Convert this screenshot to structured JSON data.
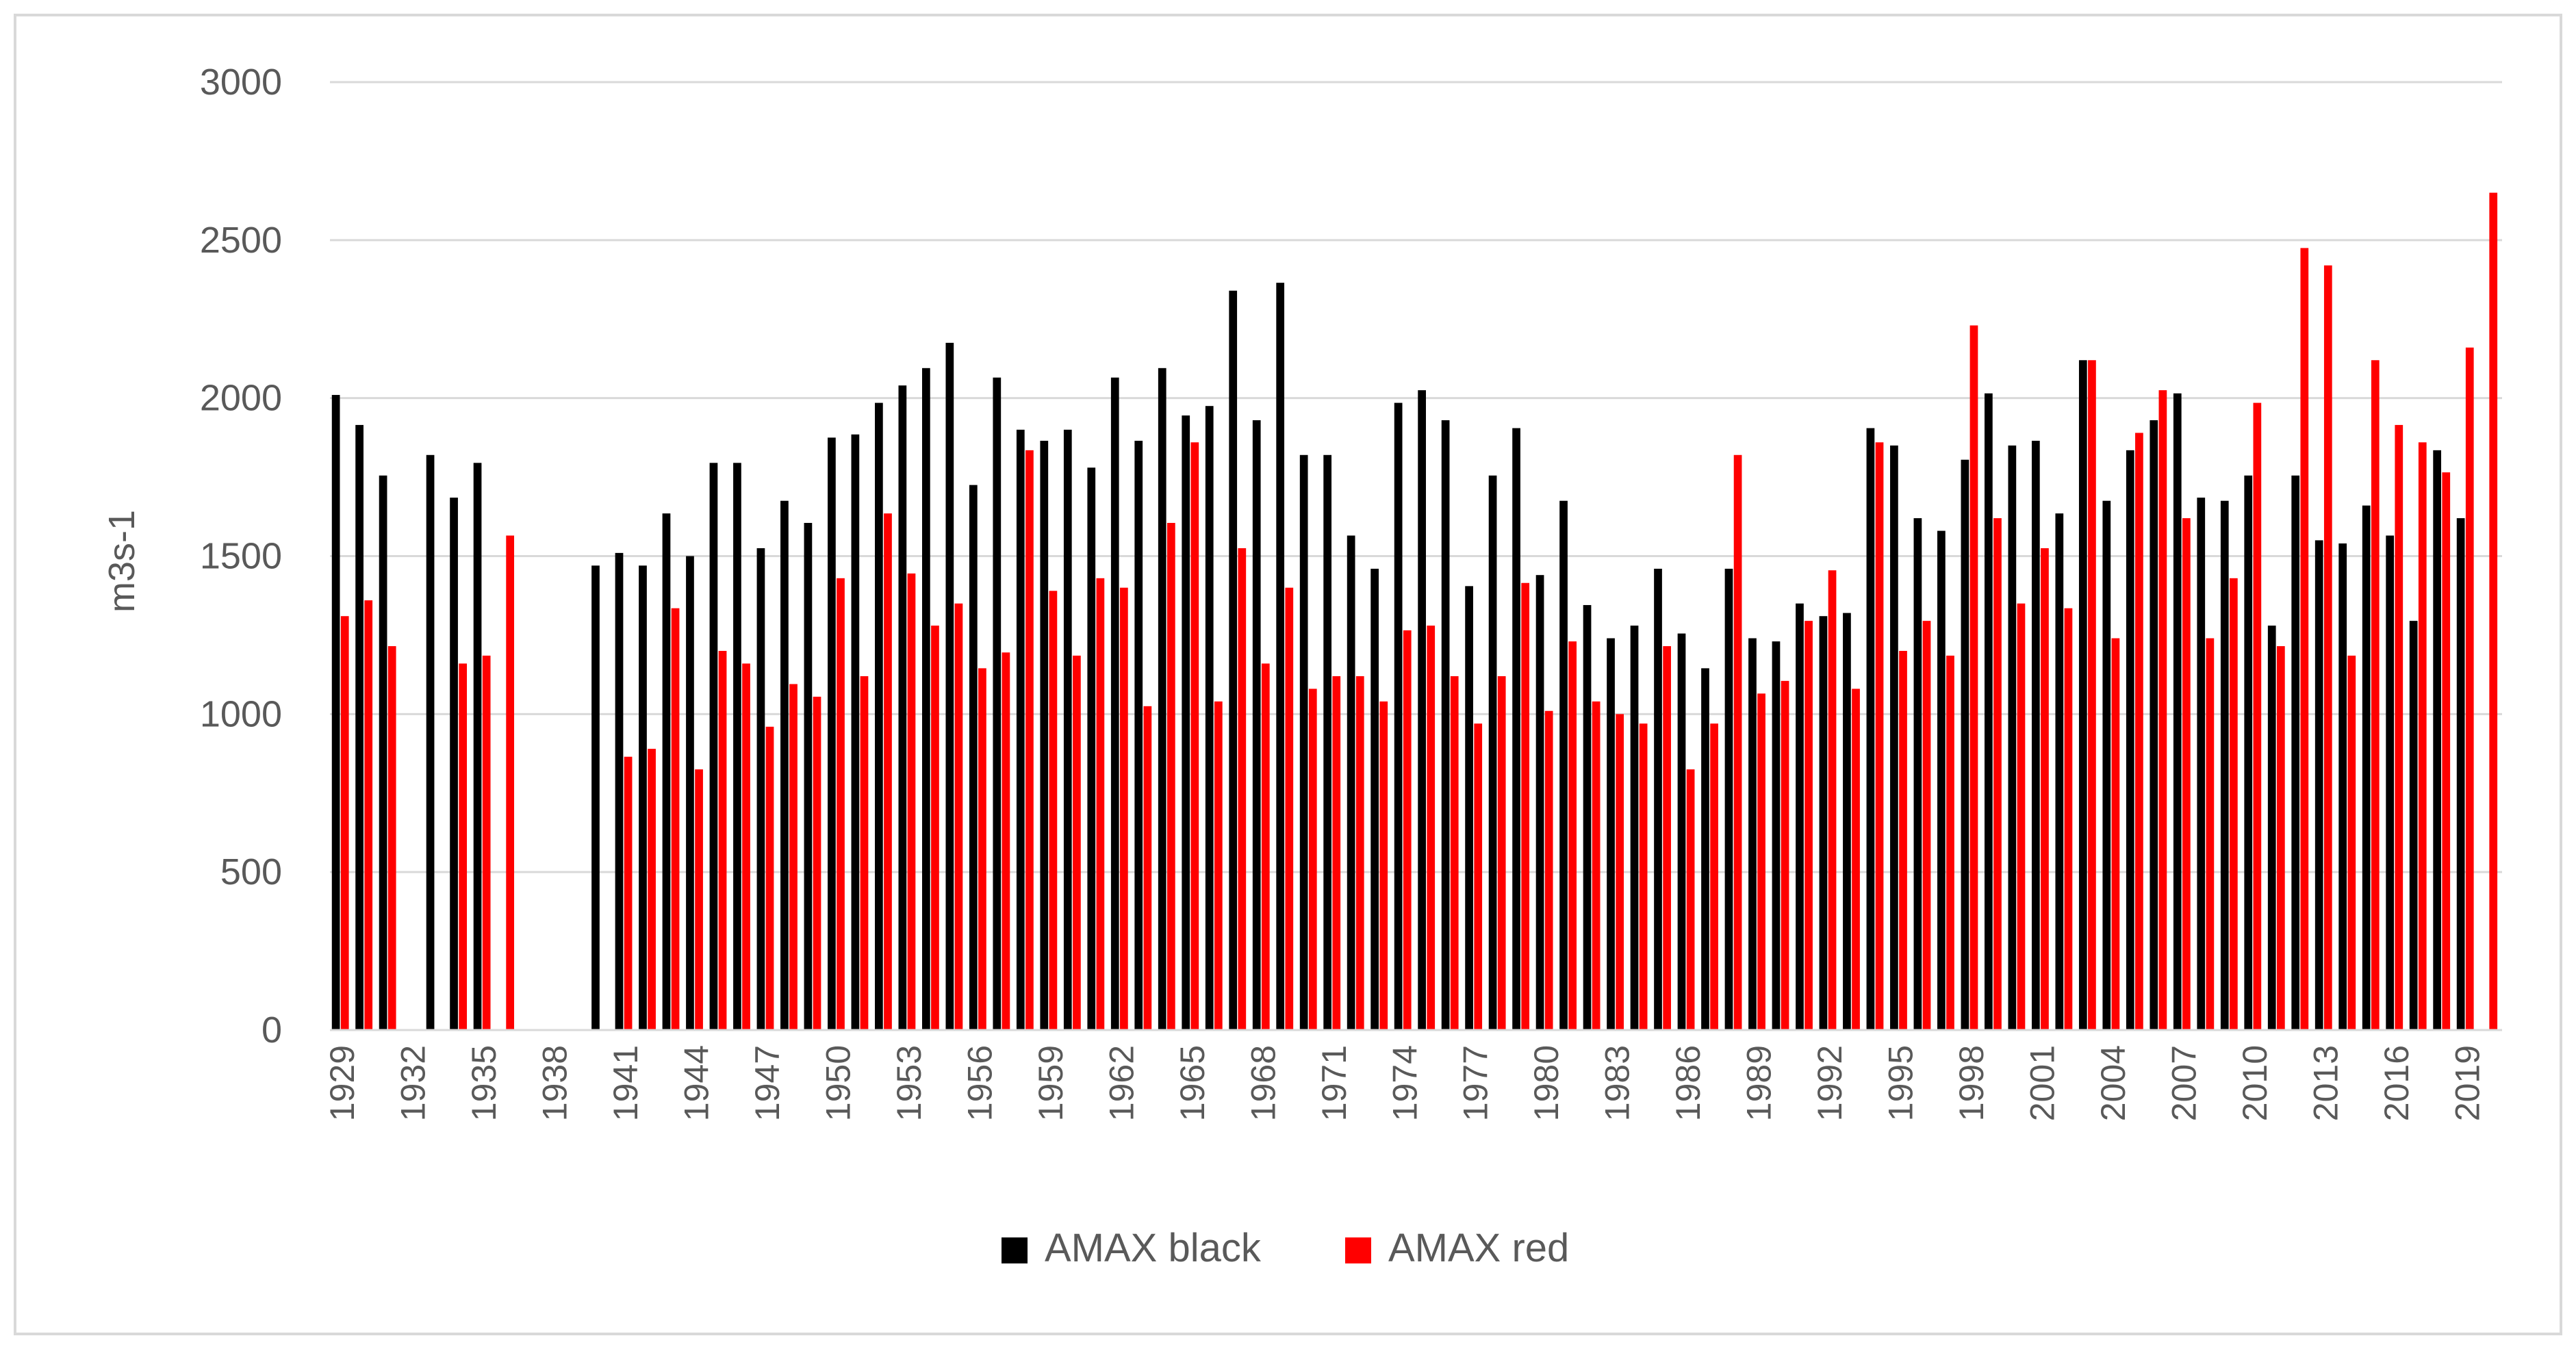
{
  "chart_data": {
    "type": "bar",
    "title": "",
    "xlabel": "",
    "ylabel": "m3s-1",
    "ylim": [
      0,
      3000
    ],
    "yticks": [
      0,
      500,
      1000,
      1500,
      2000,
      2500,
      3000
    ],
    "grid": true,
    "legend_position": "bottom",
    "categories": [
      1929,
      1930,
      1931,
      1932,
      1933,
      1934,
      1935,
      1936,
      1937,
      1938,
      1939,
      1940,
      1941,
      1942,
      1943,
      1944,
      1945,
      1946,
      1947,
      1948,
      1949,
      1950,
      1951,
      1952,
      1953,
      1954,
      1955,
      1956,
      1957,
      1958,
      1959,
      1960,
      1961,
      1962,
      1963,
      1964,
      1965,
      1966,
      1967,
      1968,
      1969,
      1970,
      1971,
      1972,
      1973,
      1974,
      1975,
      1976,
      1977,
      1978,
      1979,
      1980,
      1981,
      1982,
      1983,
      1984,
      1985,
      1986,
      1987,
      1988,
      1989,
      1990,
      1991,
      1992,
      1993,
      1994,
      1995,
      1996,
      1997,
      1998,
      1999,
      2000,
      2001,
      2002,
      2003,
      2004,
      2005,
      2006,
      2007,
      2008,
      2009,
      2010,
      2011,
      2012,
      2013,
      2014,
      2015,
      2016,
      2017,
      2018,
      2019,
      2020
    ],
    "tick_labels": [
      "1929",
      "1932",
      "1935",
      "1938",
      "1941",
      "1944",
      "1947",
      "1950",
      "1953",
      "1956",
      "1959",
      "1962",
      "1965",
      "1968",
      "1971",
      "1974",
      "1977",
      "1980",
      "1983",
      "1986",
      "1989",
      "1992",
      "1995",
      "1998",
      "2001",
      "2004",
      "2007",
      "2010",
      "2013",
      "2016",
      "2019"
    ],
    "series": [
      {
        "name": "AMAX black",
        "color": "#000000",
        "values": [
          2010,
          1915,
          1755,
          null,
          1820,
          1685,
          1795,
          null,
          null,
          null,
          null,
          1470,
          1510,
          1470,
          1635,
          1500,
          1795,
          1795,
          1525,
          1675,
          1605,
          1875,
          1885,
          1985,
          2040,
          2095,
          2175,
          1725,
          2065,
          1900,
          1865,
          1900,
          1780,
          2065,
          1865,
          2095,
          1945,
          1975,
          2340,
          1930,
          2365,
          1820,
          1820,
          1565,
          1460,
          1985,
          2025,
          1930,
          1405,
          1755,
          1905,
          1440,
          1675,
          1345,
          1240,
          1280,
          1460,
          1255,
          1145,
          1460,
          1240,
          1230,
          1350,
          1310,
          1320,
          1905,
          1850,
          1620,
          1580,
          1805,
          2015,
          1850,
          1865,
          1635,
          2120,
          1675,
          1835,
          1930,
          2015,
          1685,
          1675,
          1755,
          1280,
          1755,
          1550,
          1540,
          1660,
          1565,
          1295,
          1835,
          1620,
          null
        ]
      },
      {
        "name": "AMAX red",
        "color": "#ff0000",
        "values": [
          1310,
          1360,
          1215,
          null,
          null,
          1160,
          1185,
          1565,
          null,
          null,
          null,
          null,
          865,
          890,
          1335,
          825,
          1200,
          1160,
          960,
          1095,
          1055,
          1430,
          1120,
          1635,
          1445,
          1280,
          1350,
          1145,
          1195,
          1835,
          1390,
          1185,
          1430,
          1400,
          1025,
          1605,
          1860,
          1040,
          1525,
          1160,
          1400,
          1080,
          1120,
          1120,
          1040,
          1265,
          1280,
          1120,
          970,
          1120,
          1415,
          1010,
          1230,
          1040,
          1000,
          970,
          1215,
          825,
          970,
          1820,
          1065,
          1105,
          1295,
          1455,
          1080,
          1860,
          1200,
          1295,
          1185,
          2230,
          1620,
          1350,
          1525,
          1335,
          2120,
          1240,
          1890,
          2025,
          1620,
          1240,
          1430,
          1985,
          1215,
          2475,
          2420,
          1185,
          2120,
          1915,
          1860,
          1765,
          2160,
          2650
        ]
      }
    ]
  }
}
